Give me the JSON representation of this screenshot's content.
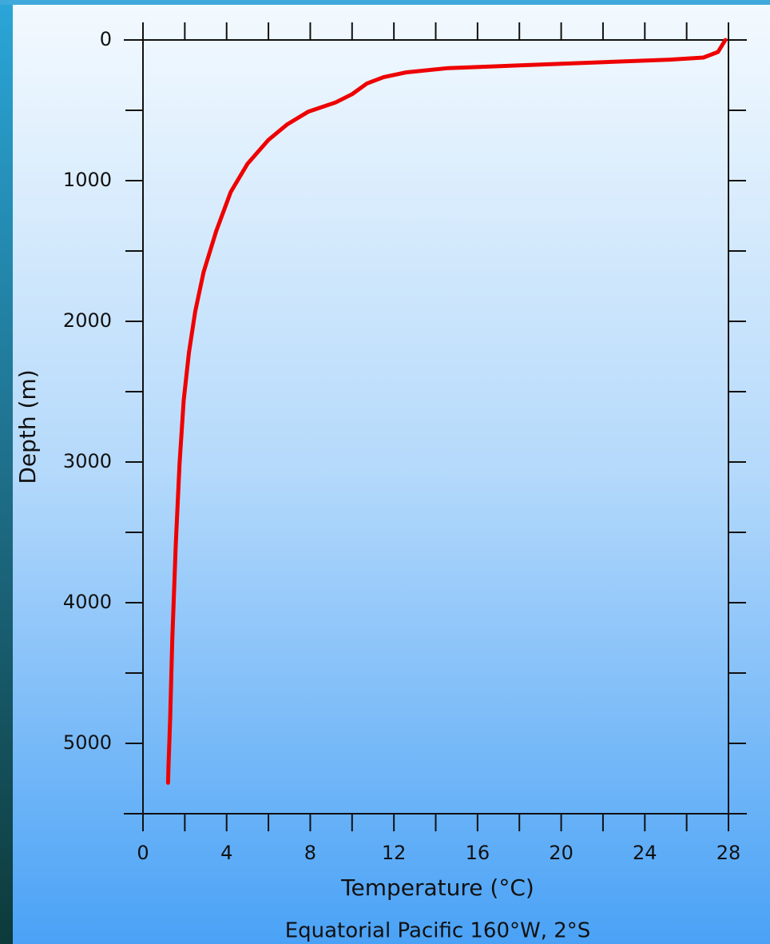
{
  "chart_data": {
    "type": "line",
    "caption": "Equatorial Pacific 160°W, 2°S",
    "x_label": "Temperature (°C)",
    "y_label": "Depth (m)",
    "x": [
      27.85,
      27.5,
      26.8,
      25.2,
      19.9,
      14.6,
      12.6,
      11.5,
      10.7,
      10.0,
      9.2,
      7.9,
      6.9,
      6.0,
      5.0,
      4.2,
      3.5,
      2.9,
      2.5,
      2.2,
      1.95,
      1.75,
      1.57,
      1.4,
      1.3,
      1.22,
      1.2
    ],
    "series": [
      {
        "color": "#ee0000",
        "values": [
          0,
          85,
          125,
          140,
          170,
          200,
          230,
          265,
          310,
          385,
          445,
          510,
          600,
          710,
          880,
          1080,
          1360,
          1650,
          1930,
          2220,
          2560,
          3010,
          3580,
          4260,
          4830,
          5170,
          5280
        ]
      }
    ],
    "xlim": [
      0,
      28
    ],
    "xticks": [
      0,
      4,
      8,
      12,
      16,
      20,
      24,
      28
    ],
    "ylim": [
      5500,
      0
    ],
    "yticks": [
      0,
      1000,
      2000,
      3000,
      4000,
      5000
    ],
    "y_inverted": true
  }
}
